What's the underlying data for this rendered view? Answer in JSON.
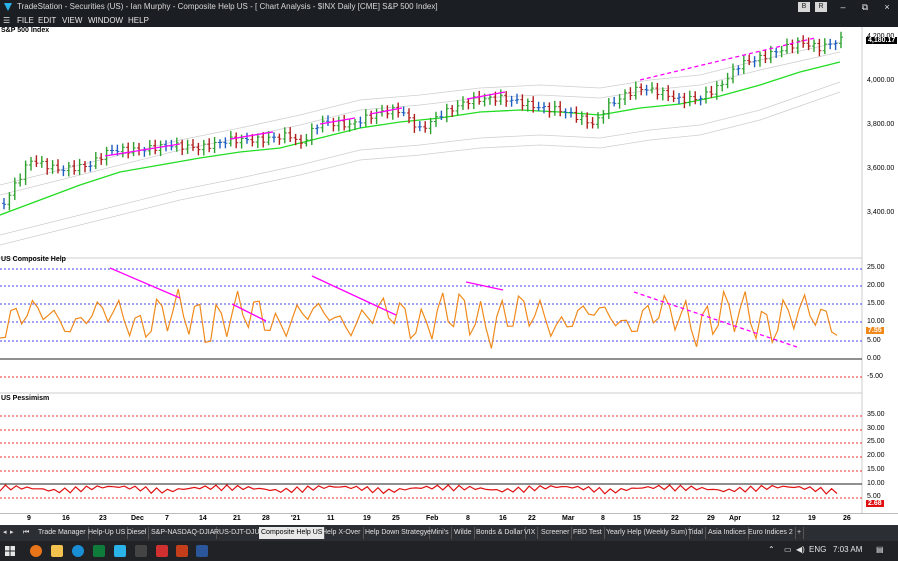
{
  "window": {
    "title": "TradeStation  -  Securities (US)  -  Ian Murphy  -  Composite Help US  -  [ Chart Analysis - $INX Daily [CME] S&P 500 Index]",
    "small_buttons": [
      "B",
      "R"
    ],
    "controls": [
      "–",
      "⧉",
      "×"
    ]
  },
  "menu": [
    "FILE",
    "EDIT",
    "VIEW",
    "WINDOW",
    "HELP"
  ],
  "panes": {
    "price": {
      "label": "S&P 500 Index",
      "axis": [
        "4,200.00",
        "4,000.00",
        "3,800.00",
        "3,600.00",
        "3,400.00"
      ],
      "last": "4,180.17",
      "last_color": "#000000"
    },
    "composite": {
      "label": "US Composite Help",
      "axis": [
        "25.00",
        "20.00",
        "15.00",
        "10.00",
        "5.00",
        "0.00",
        "-5.00"
      ],
      "last": "7.55",
      "last_color": "#f08a1c"
    },
    "pessimism": {
      "label": "US Pessimism",
      "axis": [
        "35.00",
        "30.00",
        "25.00",
        "20.00",
        "15.00",
        "10.00",
        "5.00"
      ],
      "last": "2.68",
      "last_color": "#e01010"
    }
  },
  "xaxis": [
    "9",
    "16",
    "23",
    "Dec",
    "7",
    "14",
    "21",
    "28",
    "'21",
    "11",
    "19",
    "25",
    "Feb",
    "8",
    "16",
    "22",
    "Mar",
    "8",
    "15",
    "22",
    "29",
    "Apr",
    "12",
    "19",
    "26"
  ],
  "tabs": [
    "Trade Manager",
    "Help-Up US",
    "Diesel",
    "S&P-NASDAQ-DJIA",
    "RUS-DJT-DJU",
    "Composite Help US",
    "Help X-Over",
    "Help Down Strategy",
    "eMini's",
    "Wilde",
    "Bonds & Dollar",
    "VIX",
    "Screener",
    "FBD Test",
    "Yearly Help (Weekly Sum)",
    "Tidal",
    "Asia Indices",
    "Euro Indices 2",
    "+"
  ],
  "active_tab": "Composite Help US",
  "tray": {
    "lang": "ENG",
    "time": "7:03 AM"
  },
  "colors": {
    "up_bar": "#2ca02c",
    "down_bar": "#b01c1c",
    "neutral_bar": "#1f5fbf",
    "ma": "#22dd22",
    "trendline": "#ff00ff",
    "composite": "#f08a1c",
    "pessimism": "#e01010"
  }
}
